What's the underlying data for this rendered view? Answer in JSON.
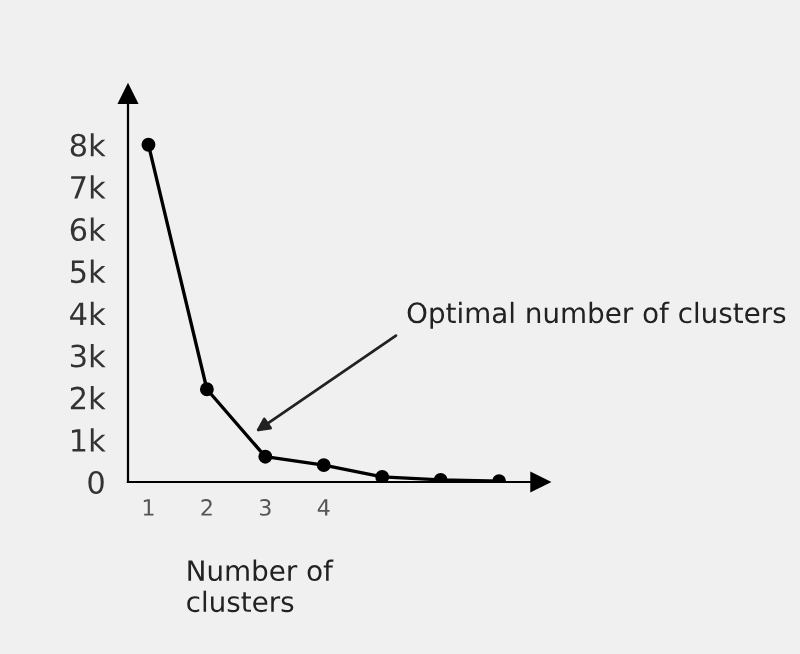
{
  "chart_data": {
    "type": "line",
    "categories": [
      "1",
      "2",
      "3",
      "4",
      null,
      null,
      null
    ],
    "values": [
      8000,
      2200,
      600,
      400,
      120,
      50,
      20
    ],
    "color": "#000000",
    "marker": "circle",
    "line_style": "solid",
    "ylim": [
      0,
      9200
    ],
    "yticks": [
      0,
      {
        "value": 1000,
        "label": "1k"
      },
      {
        "value": 2000,
        "label": "2k"
      },
      {
        "value": 3000,
        "label": "3k"
      },
      {
        "value": 4000,
        "label": "4k"
      },
      {
        "value": 5000,
        "label": "5k"
      },
      {
        "value": 6000,
        "label": "6k"
      },
      {
        "value": 7000,
        "label": "7k"
      },
      {
        "value": 8000,
        "label": "8k"
      }
    ],
    "xlabel": "Number of\nclusters",
    "annotations": [
      "Optimal number of clusters"
    ],
    "grid": false
  }
}
